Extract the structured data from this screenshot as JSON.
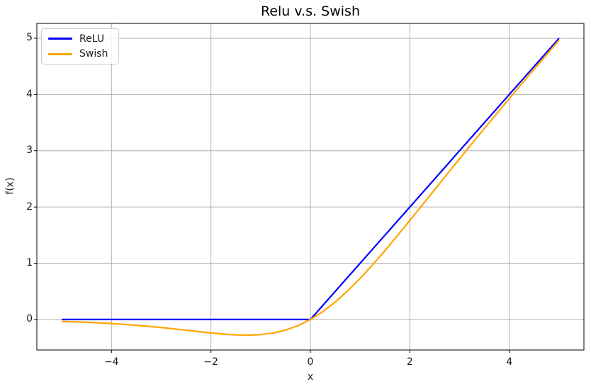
{
  "figure": {
    "background": "#ffffff"
  },
  "chart_data": {
    "type": "line",
    "title": "Relu v.s. Swish",
    "xlabel": "x",
    "ylabel": "f(x)",
    "xlim": [
      -5.5,
      5.5
    ],
    "ylim": [
      -0.5424,
      5.2639
    ],
    "xticks": [
      -4,
      -2,
      0,
      2,
      4
    ],
    "yticks": [
      0,
      1,
      2,
      3,
      4,
      5
    ],
    "grid": true,
    "grid_color": "#b0b0b0",
    "legend_position": "upper-left",
    "x": [
      -5,
      -4.75,
      -4.5,
      -4.25,
      -4,
      -3.75,
      -3.5,
      -3.25,
      -3,
      -2.75,
      -2.5,
      -2.25,
      -2,
      -1.75,
      -1.5,
      -1.25,
      -1,
      -0.75,
      -0.5,
      -0.25,
      0,
      0.25,
      0.5,
      0.75,
      1,
      1.25,
      1.5,
      1.75,
      2,
      2.25,
      2.5,
      2.75,
      3,
      3.25,
      3.5,
      3.75,
      4,
      4.25,
      4.5,
      4.75,
      5
    ],
    "series": [
      {
        "name": "ReLU",
        "color": "#0000ff",
        "values": [
          0,
          0,
          0,
          0,
          0,
          0,
          0,
          0,
          0,
          0,
          0,
          0,
          0,
          0,
          0,
          0,
          0,
          0,
          0,
          0,
          0,
          0.25,
          0.5,
          0.75,
          1,
          1.25,
          1.5,
          1.75,
          2,
          2.25,
          2.5,
          2.75,
          3,
          3.25,
          3.5,
          3.75,
          4,
          4.25,
          4.5,
          4.75,
          5
        ]
      },
      {
        "name": "Swish",
        "color": "#ffa500",
        "values": [
          -0.0335,
          -0.0407,
          -0.0494,
          -0.0598,
          -0.0719,
          -0.0862,
          -0.1026,
          -0.1213,
          -0.1423,
          -0.1652,
          -0.1896,
          -0.2145,
          -0.2384,
          -0.2591,
          -0.2736,
          -0.2784,
          -0.2689,
          -0.2406,
          -0.1888,
          -0.1095,
          0,
          0.1405,
          0.3112,
          0.5094,
          0.7311,
          0.9716,
          1.2264,
          1.4909,
          1.7616,
          2.0355,
          2.3104,
          2.5848,
          2.8577,
          3.1287,
          3.3974,
          3.6633,
          3.9281,
          4.1902,
          4.4506,
          4.7093,
          4.9665
        ]
      }
    ]
  }
}
